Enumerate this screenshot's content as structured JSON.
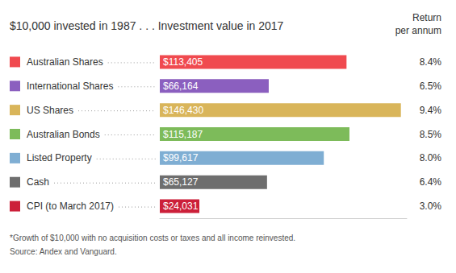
{
  "chart_data": {
    "type": "bar",
    "orientation": "horizontal",
    "title": "$10,000 invested in 1987 . . . Investment value in 2017",
    "categories": [
      "Australian Shares",
      "International Shares",
      "US Shares",
      "Australian Bonds",
      "Listed Property",
      "Cash",
      "CPI (to March 2017)"
    ],
    "values": [
      113405,
      66164,
      146430,
      115187,
      99617,
      65127,
      24031
    ],
    "value_labels": [
      "$113,405",
      "$66,164",
      "$146,430",
      "$115,187",
      "$99,617",
      "$65,127",
      "$24,031"
    ],
    "colors": [
      "#f04a4f",
      "#8b5fbf",
      "#d9b55a",
      "#7dbb5a",
      "#7faed3",
      "#6e6e6e",
      "#cc1f39"
    ],
    "returns_title": "Return\nper annum",
    "returns": [
      8.4,
      6.5,
      9.4,
      8.5,
      8.0,
      6.4,
      3.0
    ],
    "returns_labels": [
      "8.4%",
      "6.5%",
      "9.4%",
      "8.5%",
      "8.0%",
      "6.4%",
      "3.0%"
    ],
    "footnote": "*Growth of $10,000 with no acquisition costs or taxes and all income reinvested.",
    "source": "Source: Andex and Vanguard.",
    "xlim": [
      0,
      150000
    ],
    "data_labels": true,
    "tick_labels": false,
    "grid": false
  }
}
